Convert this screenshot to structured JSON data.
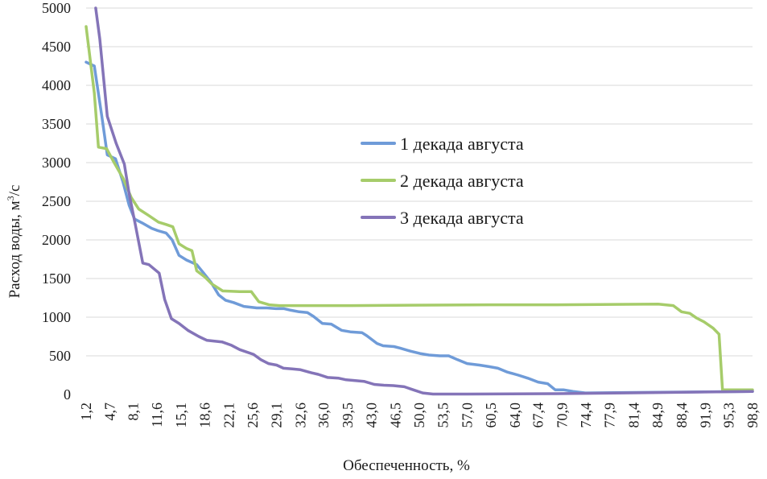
{
  "chart_data": {
    "type": "line",
    "title": "",
    "xlabel": "Обеспеченность, %",
    "ylabel": "Расход воды, м",
    "ylabel_sup": "3",
    "ylabel_suffix": "/с",
    "ylim": [
      0,
      5000
    ],
    "yticks": [
      0,
      500,
      1000,
      1500,
      2000,
      2500,
      3000,
      3500,
      4000,
      4500,
      5000
    ],
    "xlim": [
      1.2,
      98.8
    ],
    "xtick_values": [
      1.2,
      4.7,
      8.1,
      11.6,
      15.1,
      18.6,
      22.1,
      25.6,
      29.1,
      32.6,
      36.0,
      39.5,
      43.0,
      46.5,
      50.0,
      53.5,
      57.0,
      60.5,
      64.0,
      67.4,
      70.9,
      74.4,
      77.9,
      81.4,
      84.9,
      88.4,
      91.9,
      95.3,
      98.8
    ],
    "xtick_labels": [
      "1,2",
      "4,7",
      "8,1",
      "11,6",
      "15,1",
      "18,6",
      "22,1",
      "25,6",
      "29,1",
      "32,6",
      "36,0",
      "39,5",
      "43,0",
      "46,5",
      "50,0",
      "53,5",
      "57,0",
      "60,5",
      "64,0",
      "67,4",
      "70,9",
      "74,4",
      "77,9",
      "81,4",
      "84,9",
      "88,4",
      "91,9",
      "95,3",
      "98,8"
    ],
    "legend_position": "center-right",
    "series": [
      {
        "name": "1 декада августа",
        "color": "#6f9bd8",
        "points": [
          [
            1.2,
            4300
          ],
          [
            2.4,
            4250
          ],
          [
            3.5,
            3600
          ],
          [
            4.3,
            3100
          ],
          [
            5.5,
            3050
          ],
          [
            6.6,
            2750
          ],
          [
            7.5,
            2450
          ],
          [
            8.3,
            2270
          ],
          [
            9.4,
            2220
          ],
          [
            10.8,
            2150
          ],
          [
            11.7,
            2120
          ],
          [
            12.9,
            2090
          ],
          [
            13.8,
            2000
          ],
          [
            14.8,
            1800
          ],
          [
            15.9,
            1740
          ],
          [
            17.4,
            1680
          ],
          [
            18.5,
            1560
          ],
          [
            19.5,
            1450
          ],
          [
            20.6,
            1290
          ],
          [
            21.6,
            1220
          ],
          [
            22.8,
            1190
          ],
          [
            24.3,
            1140
          ],
          [
            26.2,
            1120
          ],
          [
            27.7,
            1120
          ],
          [
            29.0,
            1110
          ],
          [
            30.2,
            1110
          ],
          [
            31.2,
            1090
          ],
          [
            32.4,
            1070
          ],
          [
            33.6,
            1060
          ],
          [
            34.5,
            1010
          ],
          [
            35.8,
            920
          ],
          [
            37.1,
            910
          ],
          [
            38.6,
            830
          ],
          [
            39.9,
            810
          ],
          [
            41.6,
            800
          ],
          [
            42.3,
            760
          ],
          [
            43.8,
            660
          ],
          [
            44.7,
            630
          ],
          [
            46.3,
            620
          ],
          [
            47.2,
            600
          ],
          [
            48.7,
            560
          ],
          [
            50.1,
            530
          ],
          [
            51.4,
            510
          ],
          [
            53.0,
            500
          ],
          [
            54.3,
            500
          ],
          [
            55.6,
            450
          ],
          [
            57.0,
            400
          ],
          [
            58.8,
            380
          ],
          [
            60.2,
            360
          ],
          [
            61.5,
            340
          ],
          [
            62.9,
            290
          ],
          [
            64.5,
            250
          ],
          [
            65.9,
            210
          ],
          [
            67.4,
            160
          ],
          [
            68.8,
            140
          ],
          [
            69.9,
            60
          ],
          [
            71.1,
            60
          ],
          [
            72.5,
            40
          ],
          [
            74.3,
            20
          ],
          [
            98.8,
            40
          ]
        ]
      },
      {
        "name": "2 декада августа",
        "color": "#a6cc6a",
        "points": [
          [
            1.2,
            4760
          ],
          [
            2.4,
            3900
          ],
          [
            3.0,
            3200
          ],
          [
            4.2,
            3180
          ],
          [
            5.3,
            3000
          ],
          [
            6.6,
            2800
          ],
          [
            7.8,
            2550
          ],
          [
            8.9,
            2400
          ],
          [
            10.3,
            2320
          ],
          [
            11.8,
            2230
          ],
          [
            12.9,
            2200
          ],
          [
            13.9,
            2170
          ],
          [
            14.8,
            1950
          ],
          [
            15.9,
            1890
          ],
          [
            16.7,
            1860
          ],
          [
            17.4,
            1600
          ],
          [
            18.6,
            1520
          ],
          [
            19.6,
            1430
          ],
          [
            21.2,
            1340
          ],
          [
            23.7,
            1330
          ],
          [
            25.4,
            1330
          ],
          [
            26.5,
            1200
          ],
          [
            28.0,
            1160
          ],
          [
            29.5,
            1150
          ],
          [
            31.5,
            1150
          ],
          [
            40.0,
            1150
          ],
          [
            60.0,
            1160
          ],
          [
            70.0,
            1160
          ],
          [
            85.0,
            1170
          ],
          [
            87.2,
            1150
          ],
          [
            88.4,
            1070
          ],
          [
            89.6,
            1050
          ],
          [
            90.6,
            990
          ],
          [
            91.7,
            940
          ],
          [
            93.0,
            860
          ],
          [
            93.9,
            780
          ],
          [
            94.4,
            60
          ],
          [
            98.8,
            60
          ]
        ]
      },
      {
        "name": "3 декада августа",
        "color": "#8474b8",
        "points": [
          [
            2.6,
            5000
          ],
          [
            3.2,
            4600
          ],
          [
            4.3,
            3600
          ],
          [
            5.6,
            3250
          ],
          [
            6.8,
            2980
          ],
          [
            7.5,
            2600
          ],
          [
            8.4,
            2200
          ],
          [
            9.5,
            1700
          ],
          [
            10.4,
            1680
          ],
          [
            11.9,
            1570
          ],
          [
            12.7,
            1230
          ],
          [
            13.7,
            980
          ],
          [
            14.8,
            920
          ],
          [
            16.1,
            830
          ],
          [
            17.7,
            750
          ],
          [
            18.9,
            700
          ],
          [
            21.1,
            680
          ],
          [
            22.4,
            640
          ],
          [
            23.7,
            580
          ],
          [
            25.7,
            520
          ],
          [
            26.8,
            450
          ],
          [
            27.9,
            400
          ],
          [
            29.1,
            380
          ],
          [
            30.1,
            340
          ],
          [
            31.4,
            330
          ],
          [
            32.6,
            320
          ],
          [
            34.2,
            280
          ],
          [
            35.2,
            260
          ],
          [
            36.6,
            220
          ],
          [
            38.2,
            210
          ],
          [
            39.3,
            190
          ],
          [
            40.6,
            180
          ],
          [
            41.9,
            170
          ],
          [
            43.4,
            130
          ],
          [
            44.8,
            120
          ],
          [
            46.2,
            115
          ],
          [
            47.8,
            100
          ],
          [
            49.1,
            60
          ],
          [
            50.5,
            20
          ],
          [
            52.0,
            5
          ],
          [
            57.0,
            5
          ],
          [
            70.0,
            10
          ],
          [
            80.0,
            20
          ],
          [
            98.8,
            40
          ]
        ]
      }
    ]
  }
}
